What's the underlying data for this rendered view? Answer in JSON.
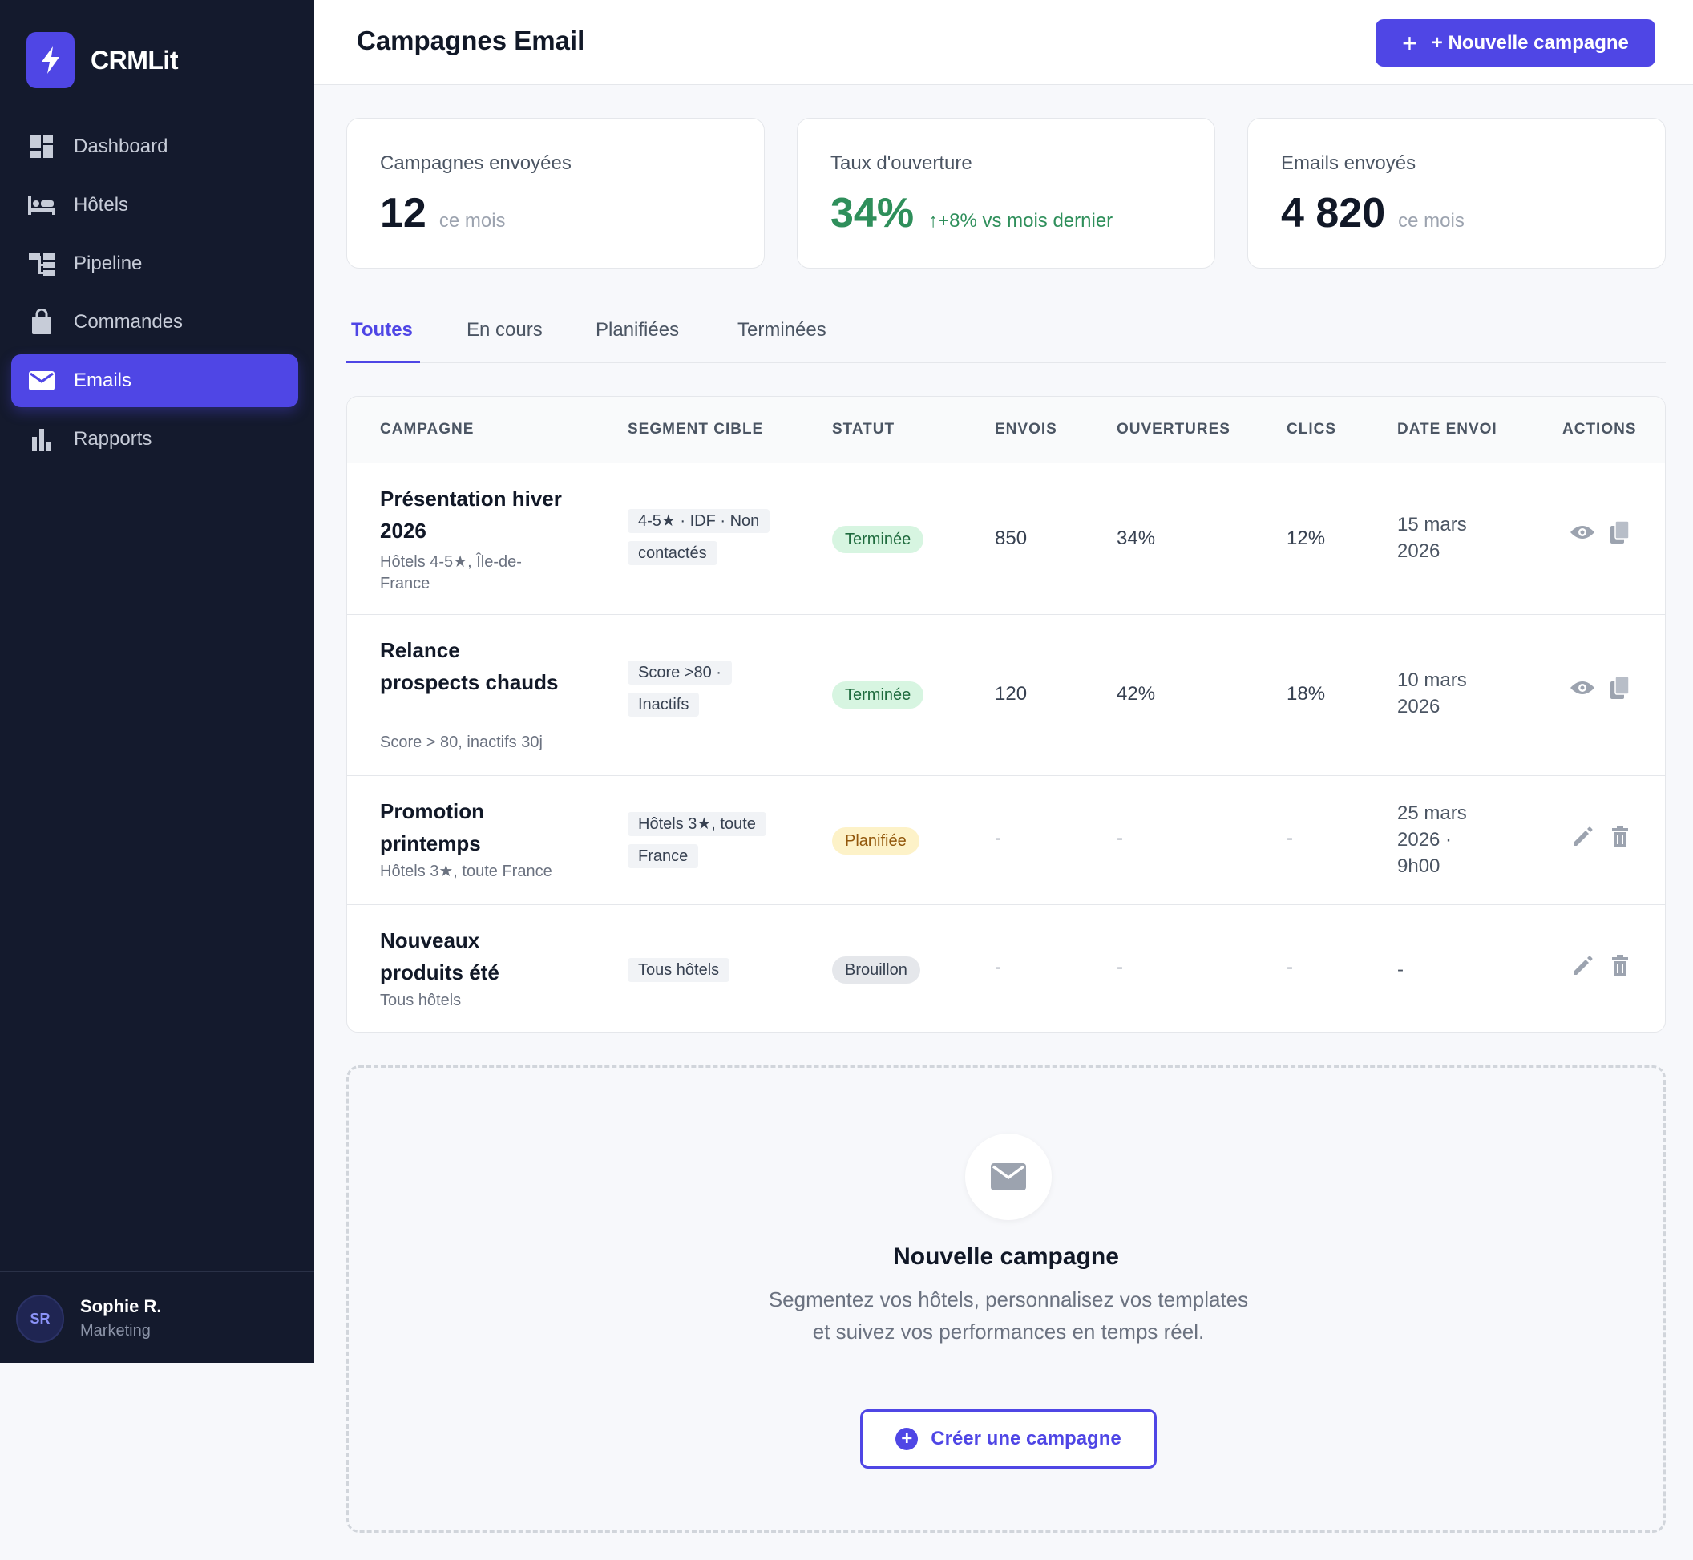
{
  "app": {
    "name": "CRMLit",
    "logo_icon": "bolt-icon",
    "accent": "#4f46e5"
  },
  "sidebar": {
    "items": [
      {
        "label": "Dashboard",
        "icon": "dashboard-icon"
      },
      {
        "label": "Hôtels",
        "icon": "bed-icon"
      },
      {
        "label": "Pipeline",
        "icon": "pipeline-icon"
      },
      {
        "label": "Commandes",
        "icon": "shopping-bag-icon"
      },
      {
        "label": "Emails",
        "icon": "mail-icon",
        "active": true
      },
      {
        "label": "Rapports",
        "icon": "bar-chart-icon"
      }
    ],
    "user": {
      "initials": "SR",
      "name": "Sophie R.",
      "role": "Marketing"
    }
  },
  "header": {
    "title": "Campagnes Email",
    "new_button": "+ Nouvelle campagne"
  },
  "stats": [
    {
      "label": "Campagnes envoyées",
      "value": "12",
      "sub": "ce mois"
    },
    {
      "label": "Taux d'ouverture",
      "value": "34%",
      "trend": "+8% vs mois dernier",
      "color": "#2f8f5b"
    },
    {
      "label": "Emails envoyés",
      "value": "4 820",
      "sub": "ce mois"
    }
  ],
  "tabs": [
    "Toutes",
    "En cours",
    "Planifiées",
    "Terminées"
  ],
  "table": {
    "headers": [
      "CAMPAGNE",
      "SEGMENT CIBLE",
      "STATUT",
      "ENVOIS",
      "OUVERTURES",
      "CLICS",
      "DATE ENVOI",
      "ACTIONS"
    ],
    "rows": [
      {
        "name": "Présentation hiver 2026",
        "sub": "Hôtels 4-5★, Île-de-France",
        "segment": "4-5★ · IDF · Non contactés",
        "status": "Terminée",
        "sends": "850",
        "opens": "34%",
        "clicks": "12%",
        "date": "15 mars 2026",
        "actions": [
          "eye-icon",
          "copy-icon"
        ]
      },
      {
        "name": "Relance prospects chauds",
        "sub": "Score > 80, inactifs 30j",
        "segment": "Score >80 · Inactifs",
        "status": "Terminée",
        "sends": "120",
        "opens": "42%",
        "clicks": "18%",
        "date": "10 mars 2026",
        "actions": [
          "eye-icon",
          "copy-icon"
        ]
      },
      {
        "name": "Promotion printemps",
        "sub": "Hôtels 3★, toute France",
        "segment": "Hôtels 3★, toute France",
        "status": "Planifiée",
        "sends": "-",
        "opens": "-",
        "clicks": "-",
        "date": "25 mars 2026 · 9h00",
        "actions": [
          "pencil-icon",
          "trash-icon"
        ]
      },
      {
        "name": "Nouveaux produits été",
        "sub": "Tous hôtels",
        "segment": "Tous hôtels",
        "status": "Brouillon",
        "sends": "-",
        "opens": "-",
        "clicks": "-",
        "date": "-",
        "actions": [
          "pencil-icon",
          "trash-icon"
        ]
      }
    ]
  },
  "empty_state": {
    "icon": "mail-icon",
    "title": "Nouvelle campagne",
    "description": "Segmentez vos hôtels, personnalisez vos templates et suivez vos performances en temps réel.",
    "button": "Créer une campagne"
  }
}
